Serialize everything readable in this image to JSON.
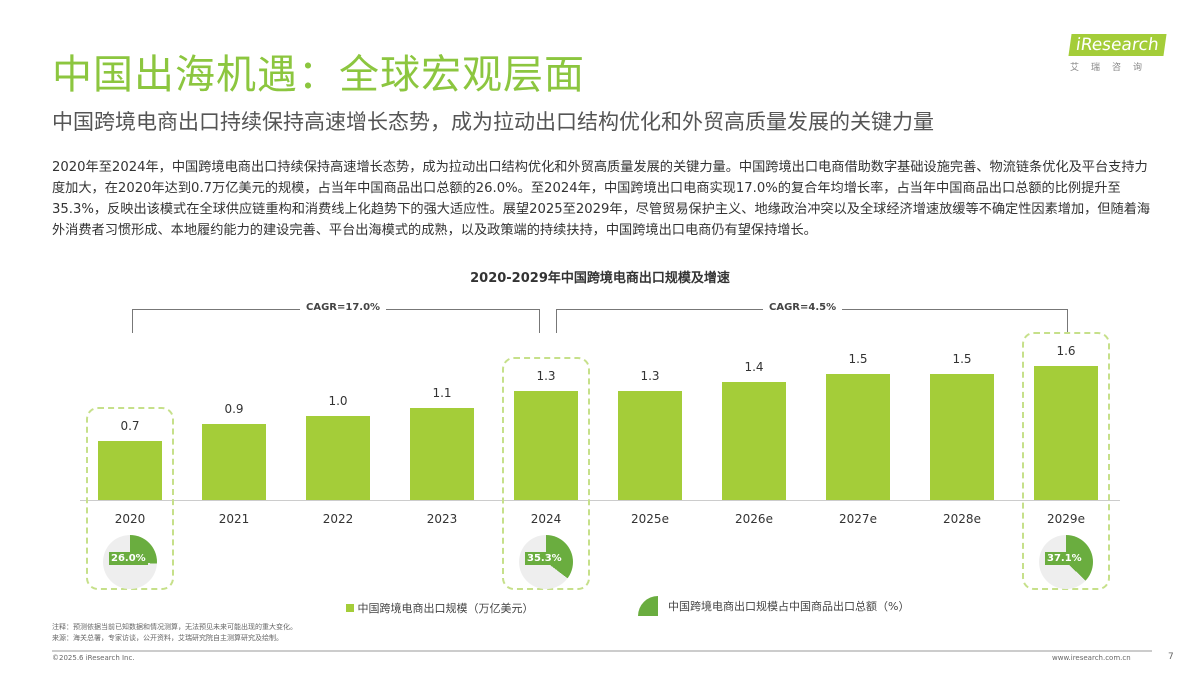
{
  "header": {
    "title": "中国出海机遇：全球宏观层面",
    "subtitle": "中国跨境电商出口持续保持高速增长态势，成为拉动出口结构优化和外贸高质量发展的关键力量",
    "logo_text": "iResearch",
    "logo_cn": "艾瑞咨询"
  },
  "body_text": "2020年至2024年，中国跨境电商出口持续保持高速增长态势，成为拉动出口结构优化和外贸高质量发展的关键力量。中国跨境出口电商借助数字基础设施完善、物流链条优化及平台支持力度加大，在2020年达到0.7万亿美元的规模，占当年中国商品出口总额的26.0%。至2024年，中国跨境出口电商实现17.0%的复合年均增长率，占当年中国商品出口总额的比例提升至35.3%，反映出该模式在全球供应链重构和消费线上化趋势下的强大适应性。展望2025至2029年，尽管贸易保护主义、地缘政治冲突以及全球经济增速放缓等不确定性因素增加，但随着海外消费者习惯形成、本地履约能力的建设完善、平台出海模式的成熟，以及政策端的持续扶持，中国跨境出口电商仍有望保持增长。",
  "chart_data": {
    "type": "bar",
    "title": "2020-2029年中国跨境电商出口规模及增速",
    "categories": [
      "2020",
      "2021",
      "2022",
      "2023",
      "2024",
      "2025e",
      "2026e",
      "2027e",
      "2028e",
      "2029e"
    ],
    "series": [
      {
        "name": "中国跨境电商出口规模（万亿美元）",
        "values": [
          0.7,
          0.9,
          1.0,
          1.1,
          1.3,
          1.3,
          1.4,
          1.5,
          1.5,
          1.6
        ],
        "labels": [
          "0.7",
          "0.9",
          "1.0",
          "1.1",
          "1.3",
          "1.3",
          "1.4",
          "1.5",
          "1.5",
          "1.6"
        ]
      }
    ],
    "share_series": {
      "name": "中国跨境电商出口规模占中国商品出口总额（%）",
      "points": [
        {
          "category": "2020",
          "value": 26.0,
          "label": "26.0%"
        },
        {
          "category": "2024",
          "value": 35.3,
          "label": "35.3%"
        },
        {
          "category": "2029e",
          "value": 37.1,
          "label": "37.1%"
        }
      ]
    },
    "annotations": [
      {
        "text": "CAGR=17.0%",
        "range": [
          "2020",
          "2024"
        ]
      },
      {
        "text": "CAGR=4.5%",
        "range": [
          "2025e",
          "2029e"
        ]
      }
    ],
    "ylim": [
      0,
      1.8
    ],
    "colors": {
      "bar": "#a4cd39",
      "pie": "#6aad3f",
      "pie_bg": "#eeeeee"
    }
  },
  "footer": {
    "note": "注释：预测依据当前已知数据和情况测算，无法预见未来可能出现的重大变化。",
    "source": "来源：海关总署，专家访谈，公开资料，艾瑞研究院自主测算研究及绘制。",
    "copyright": "©2025.6 iResearch Inc.",
    "url": "www.iresearch.com.cn",
    "page": "7"
  }
}
